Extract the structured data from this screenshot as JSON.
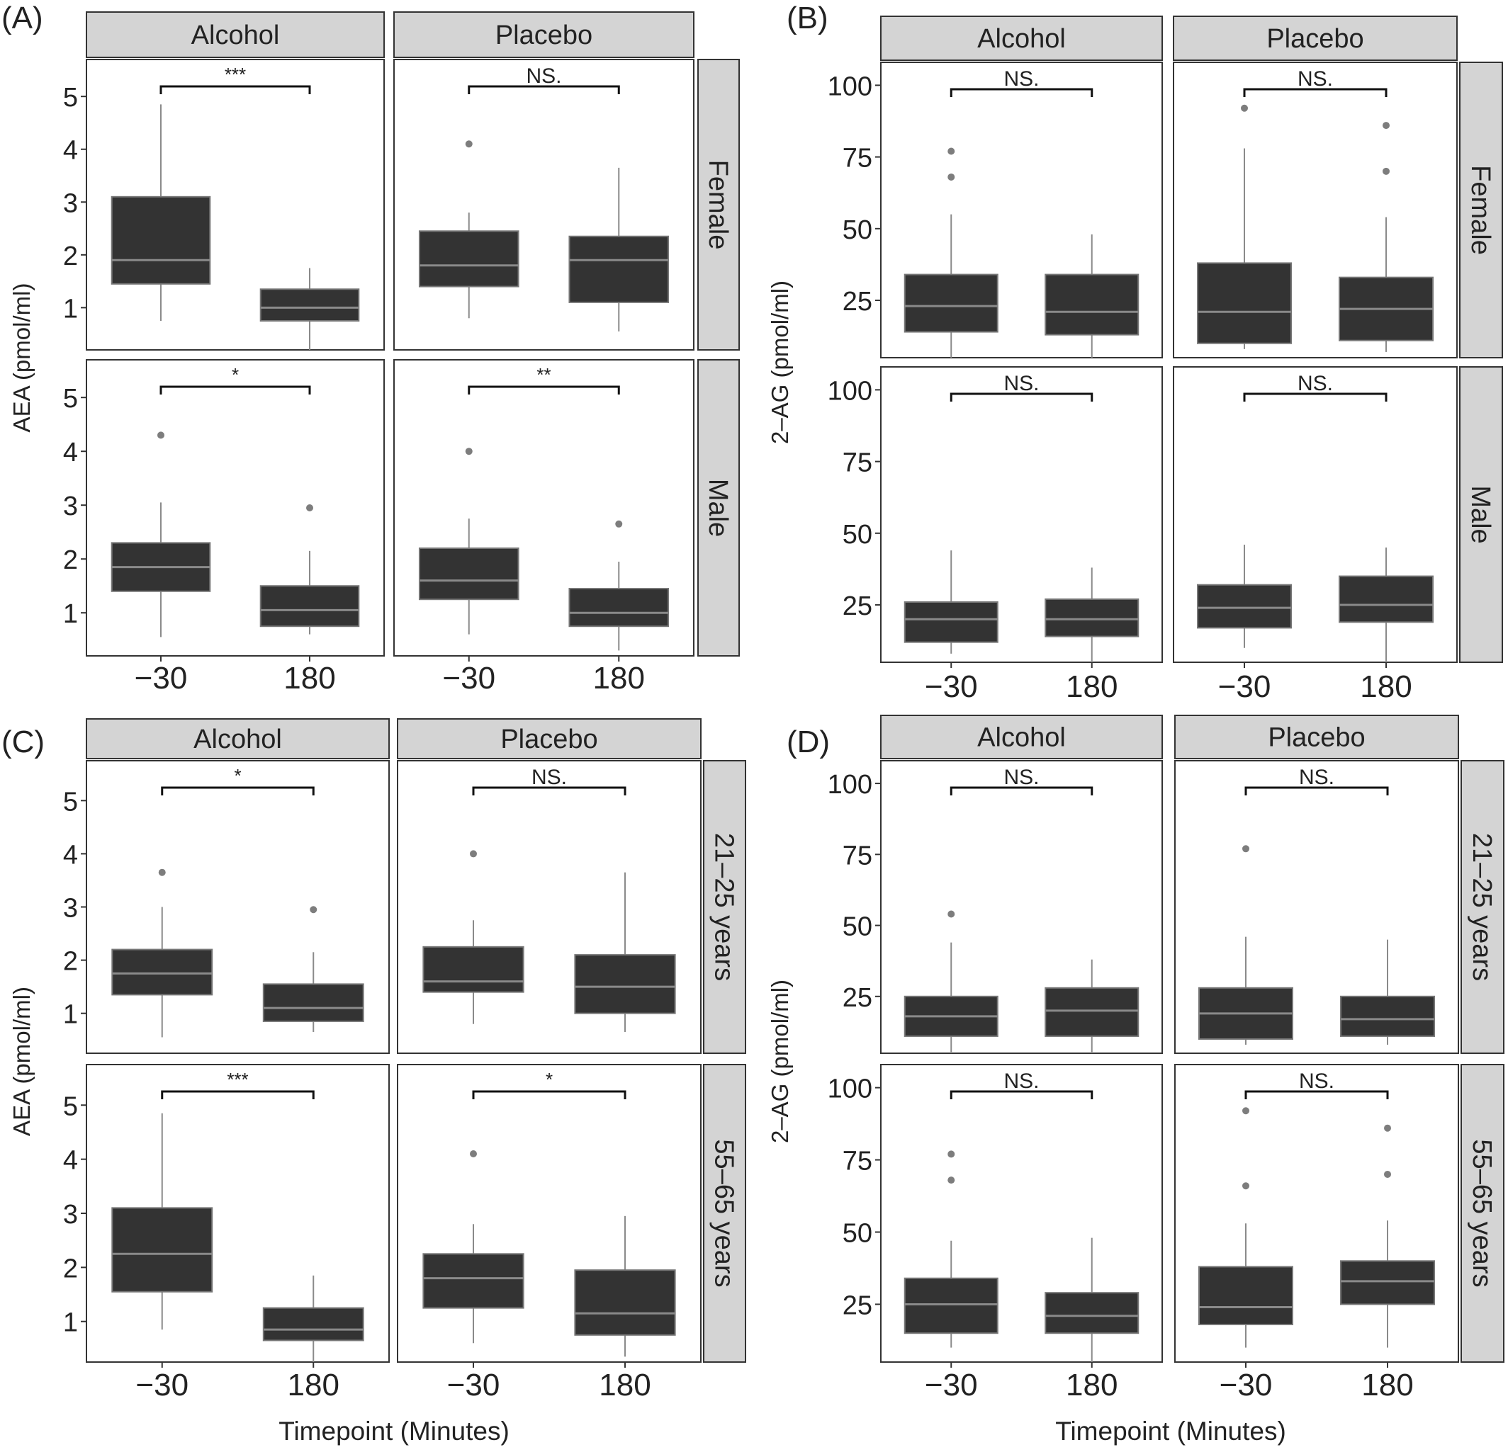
{
  "figure": {
    "x_axis_title": "Timepoint (Minutes)",
    "facet_columns": [
      "Alcohol",
      "Placebo"
    ]
  },
  "colors": {
    "box_fill": "#333333",
    "box_outline": "#777777",
    "median": "#8a8a8a",
    "whisker": "#8a8a8a",
    "outlier": "#7d7d7d",
    "strip_fill": "#d4d4d4",
    "strip_border": "#333333",
    "panel_border": "#333333",
    "text": "#222222"
  },
  "chart_data": [
    {
      "type": "box",
      "label": "(A)",
      "ylabel": "AEA (pmol/ml)",
      "ylim": [
        0.2,
        5.7
      ],
      "yticks": [
        1,
        2,
        3,
        4,
        5
      ],
      "ytick_labels": [
        "1",
        "2",
        "3",
        "4",
        "5"
      ],
      "categories": [
        "-30",
        "180"
      ],
      "category_labels": [
        "−30",
        "180"
      ],
      "columns": [
        "Alcohol",
        "Placebo"
      ],
      "rows": [
        "Female",
        "Male"
      ],
      "panels": [
        {
          "column": "Alcohol",
          "row": "Female",
          "significance": "***",
          "boxes": [
            {
              "x": "-30",
              "min": 0.75,
              "q1": 1.45,
              "median": 1.9,
              "q3": 3.1,
              "max": 4.85,
              "outliers": []
            },
            {
              "x": "180",
              "min": 0.2,
              "q1": 0.75,
              "median": 1.0,
              "q3": 1.35,
              "max": 1.75,
              "outliers": []
            }
          ]
        },
        {
          "column": "Placebo",
          "row": "Female",
          "significance": "NS.",
          "boxes": [
            {
              "x": "-30",
              "min": 0.8,
              "q1": 1.4,
              "median": 1.8,
              "q3": 2.45,
              "max": 2.8,
              "outliers": [
                4.1
              ]
            },
            {
              "x": "180",
              "min": 0.55,
              "q1": 1.1,
              "median": 1.9,
              "q3": 2.35,
              "max": 3.65,
              "outliers": []
            }
          ]
        },
        {
          "column": "Alcohol",
          "row": "Male",
          "significance": "*",
          "boxes": [
            {
              "x": "-30",
              "min": 0.55,
              "q1": 1.4,
              "median": 1.85,
              "q3": 2.3,
              "max": 3.05,
              "outliers": [
                4.3
              ]
            },
            {
              "x": "180",
              "min": 0.6,
              "q1": 0.75,
              "median": 1.05,
              "q3": 1.5,
              "max": 2.15,
              "outliers": [
                2.95
              ]
            }
          ]
        },
        {
          "column": "Placebo",
          "row": "Male",
          "significance": "**",
          "boxes": [
            {
              "x": "-30",
              "min": 0.6,
              "q1": 1.25,
              "median": 1.6,
              "q3": 2.2,
              "max": 2.75,
              "outliers": [
                4.0
              ]
            },
            {
              "x": "180",
              "min": 0.3,
              "q1": 0.75,
              "median": 1.0,
              "q3": 1.45,
              "max": 1.95,
              "outliers": [
                2.65
              ]
            }
          ]
        }
      ]
    },
    {
      "type": "box",
      "label": "(B)",
      "ylabel": "2–AG (pmol/ml)",
      "ylim": [
        5,
        108
      ],
      "yticks": [
        25,
        50,
        75,
        100
      ],
      "ytick_labels": [
        "25",
        "50",
        "75",
        "100"
      ],
      "categories": [
        "-30",
        "180"
      ],
      "category_labels": [
        "−30",
        "180"
      ],
      "columns": [
        "Alcohol",
        "Placebo"
      ],
      "rows": [
        "Female",
        "Male"
      ],
      "panels": [
        {
          "column": "Alcohol",
          "row": "Female",
          "significance": "NS.",
          "boxes": [
            {
              "x": "-30",
              "min": 5,
              "q1": 14,
              "median": 23,
              "q3": 34,
              "max": 55,
              "outliers": [
                77,
                68
              ]
            },
            {
              "x": "180",
              "min": 5,
              "q1": 13,
              "median": 21,
              "q3": 34,
              "max": 48,
              "outliers": []
            }
          ]
        },
        {
          "column": "Placebo",
          "row": "Female",
          "significance": "NS.",
          "boxes": [
            {
              "x": "-30",
              "min": 8,
              "q1": 10,
              "median": 21,
              "q3": 38,
              "max": 78,
              "outliers": [
                92
              ]
            },
            {
              "x": "180",
              "min": 7,
              "q1": 11,
              "median": 22,
              "q3": 33,
              "max": 54,
              "outliers": [
                86,
                70
              ]
            }
          ]
        },
        {
          "column": "Alcohol",
          "row": "Male",
          "significance": "NS.",
          "boxes": [
            {
              "x": "-30",
              "min": 8,
              "q1": 12,
              "median": 20,
              "q3": 26,
              "max": 44,
              "outliers": []
            },
            {
              "x": "180",
              "min": 5,
              "q1": 14,
              "median": 20,
              "q3": 27,
              "max": 38,
              "outliers": []
            }
          ]
        },
        {
          "column": "Placebo",
          "row": "Male",
          "significance": "NS.",
          "boxes": [
            {
              "x": "-30",
              "min": 10,
              "q1": 17,
              "median": 24,
              "q3": 32,
              "max": 46,
              "outliers": []
            },
            {
              "x": "180",
              "min": 5,
              "q1": 19,
              "median": 25,
              "q3": 35,
              "max": 45,
              "outliers": []
            }
          ]
        }
      ]
    },
    {
      "type": "box",
      "label": "(C)",
      "ylabel": "AEA (pmol/ml)",
      "ylim": [
        0.25,
        5.75
      ],
      "yticks": [
        1,
        2,
        3,
        4,
        5
      ],
      "ytick_labels": [
        "1",
        "2",
        "3",
        "4",
        "5"
      ],
      "categories": [
        "-30",
        "180"
      ],
      "category_labels": [
        "−30",
        "180"
      ],
      "columns": [
        "Alcohol",
        "Placebo"
      ],
      "rows": [
        "21–25 years",
        "55–65 years"
      ],
      "panels": [
        {
          "column": "Alcohol",
          "row": "21–25 years",
          "significance": "*",
          "boxes": [
            {
              "x": "-30",
              "min": 0.55,
              "q1": 1.35,
              "median": 1.75,
              "q3": 2.2,
              "max": 3.0,
              "outliers": [
                3.65
              ]
            },
            {
              "x": "180",
              "min": 0.65,
              "q1": 0.85,
              "median": 1.1,
              "q3": 1.55,
              "max": 2.15,
              "outliers": [
                2.95
              ]
            }
          ]
        },
        {
          "column": "Placebo",
          "row": "21–25 years",
          "significance": "NS.",
          "boxes": [
            {
              "x": "-30",
              "min": 0.8,
              "q1": 1.4,
              "median": 1.6,
              "q3": 2.25,
              "max": 2.75,
              "outliers": [
                4.0
              ]
            },
            {
              "x": "180",
              "min": 0.65,
              "q1": 1.0,
              "median": 1.5,
              "q3": 2.1,
              "max": 3.65,
              "outliers": []
            }
          ]
        },
        {
          "column": "Alcohol",
          "row": "55–65 years",
          "significance": "***",
          "boxes": [
            {
              "x": "-30",
              "min": 0.85,
              "q1": 1.55,
              "median": 2.25,
              "q3": 3.1,
              "max": 4.85,
              "outliers": []
            },
            {
              "x": "180",
              "min": 0.25,
              "q1": 0.65,
              "median": 0.85,
              "q3": 1.25,
              "max": 1.85,
              "outliers": []
            }
          ]
        },
        {
          "column": "Placebo",
          "row": "55–65 years",
          "significance": "*",
          "boxes": [
            {
              "x": "-30",
              "min": 0.6,
              "q1": 1.25,
              "median": 1.8,
              "q3": 2.25,
              "max": 2.8,
              "outliers": [
                4.1
              ]
            },
            {
              "x": "180",
              "min": 0.35,
              "q1": 0.75,
              "median": 1.15,
              "q3": 1.95,
              "max": 2.95,
              "outliers": []
            }
          ]
        }
      ]
    },
    {
      "type": "box",
      "label": "(D)",
      "ylabel": "2–AG (pmol/ml)",
      "ylim": [
        5,
        108
      ],
      "yticks": [
        25,
        50,
        75,
        100
      ],
      "ytick_labels": [
        "25",
        "50",
        "75",
        "100"
      ],
      "categories": [
        "-30",
        "180"
      ],
      "category_labels": [
        "−30",
        "180"
      ],
      "columns": [
        "Alcohol",
        "Placebo"
      ],
      "rows": [
        "21–25 years",
        "55–65 years"
      ],
      "panels": [
        {
          "column": "Alcohol",
          "row": "21–25 years",
          "significance": "NS.",
          "boxes": [
            {
              "x": "-30",
              "min": 5,
              "q1": 11,
              "median": 18,
              "q3": 25,
              "max": 44,
              "outliers": [
                54
              ]
            },
            {
              "x": "180",
              "min": 5,
              "q1": 11,
              "median": 20,
              "q3": 28,
              "max": 38,
              "outliers": []
            }
          ]
        },
        {
          "column": "Placebo",
          "row": "21–25 years",
          "significance": "NS.",
          "boxes": [
            {
              "x": "-30",
              "min": 8,
              "q1": 10,
              "median": 19,
              "q3": 28,
              "max": 46,
              "outliers": [
                77
              ]
            },
            {
              "x": "180",
              "min": 8,
              "q1": 11,
              "median": 17,
              "q3": 25,
              "max": 45,
              "outliers": []
            }
          ]
        },
        {
          "column": "Alcohol",
          "row": "55–65 years",
          "significance": "NS.",
          "boxes": [
            {
              "x": "-30",
              "min": 10,
              "q1": 15,
              "median": 25,
              "q3": 34,
              "max": 47,
              "outliers": [
                77,
                68
              ]
            },
            {
              "x": "180",
              "min": 5,
              "q1": 15,
              "median": 21,
              "q3": 29,
              "max": 48,
              "outliers": []
            }
          ]
        },
        {
          "column": "Placebo",
          "row": "55–65 years",
          "significance": "NS.",
          "boxes": [
            {
              "x": "-30",
              "min": 10,
              "q1": 18,
              "median": 24,
              "q3": 38,
              "max": 53,
              "outliers": [
                92,
                66
              ]
            },
            {
              "x": "180",
              "min": 10,
              "q1": 25,
              "median": 33,
              "q3": 40,
              "max": 54,
              "outliers": [
                86,
                70
              ]
            }
          ]
        }
      ]
    }
  ]
}
